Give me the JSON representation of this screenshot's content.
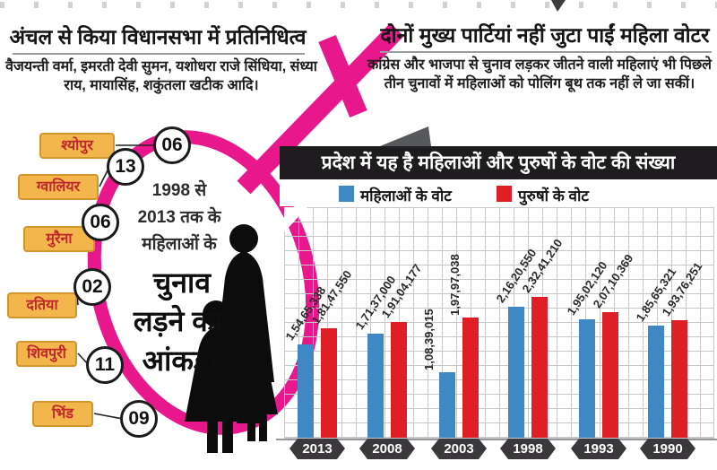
{
  "colors": {
    "pink": "#e8188c",
    "female_votes_blue": "#3f87c5",
    "male_votes_red": "#e01e25",
    "title_band_bg": "#1e1c1e",
    "district_badge_bg": "#f2b64d",
    "district_badge_border": "#d3962f",
    "district_badge_text": "#c0272d",
    "year_badge_bg": "#3a383b",
    "ribbon_shadow_gray": "#57585c"
  },
  "icons": {
    "female_symbol": "venus-symbol",
    "mother_and_children": "woman-with-children-silhouette"
  },
  "top_left": {
    "headline": "अंचल से किया विधानसभा में प्रतिनिधित्व",
    "body": "वैजयन्ती वर्मा, इमरती देवी सुमन, यशोधरा राजे सिंधिया, संध्या राय, मायासिंह, शकुंतला खटीक आदि।"
  },
  "top_right": {
    "headline": "दोनों मुख्य पार्टियां नहीं जुटा पाईं महिला वोटर",
    "body": "कांग्रेस और भाजपा से चुनाव लड़कर जीतने वाली महिलाएं भी पिछले तीन चुनावों में महिलाओं को पोलिंग बूथ तक नहीं ले जा सकीं।"
  },
  "diagram": {
    "period_lines": [
      "1998 से",
      "2013 तक के",
      "महिलाओं के"
    ],
    "emphasis_lines": [
      "चुनाव",
      "लड़ने का",
      "आंकड़ा"
    ],
    "districts": [
      {
        "name": "श्योपुर",
        "count": "06"
      },
      {
        "name": "ग्वालियर",
        "count": "13"
      },
      {
        "name": "मुरैना",
        "count": "06"
      },
      {
        "name": "दतिया",
        "count": "02"
      },
      {
        "name": "शिवपुरी",
        "count": "11"
      },
      {
        "name": "भिंड",
        "count": "09"
      }
    ]
  },
  "chart_data": {
    "type": "bar",
    "title": "प्रदेश में यह है महिलाओं और पुरुषों के वोट की संख्या",
    "categories": [
      "2013",
      "2008",
      "2003",
      "1998",
      "1993",
      "1990"
    ],
    "series": [
      {
        "name": "महिलाओं के वोट",
        "color_key": "female_votes_blue",
        "values": [
          15465338,
          17137000,
          10839015,
          21620550,
          19502120,
          18565321
        ],
        "labels": [
          "1,54,65,338",
          "1,71,37,000",
          "1,08,39,015",
          "2,16,20,550",
          "1,95,02,120",
          "1,85,65,321"
        ]
      },
      {
        "name": "पुरुषों के वोट",
        "color_key": "male_votes_red",
        "values": [
          18147550,
          19104177,
          19797038,
          23241210,
          20710369,
          19376251
        ],
        "labels": [
          "1,81,47,550",
          "1,91,04,177",
          "1,97,97,038",
          "2,32,41,210",
          "2,07,10,369",
          "1,93,76,251"
        ]
      }
    ],
    "label_orientation": [
      "diagonal",
      "diagonal",
      "vertical",
      "diagonal",
      "diagonal",
      "diagonal"
    ],
    "legend_position": "top",
    "grid": true,
    "ylim": [
      0,
      24000000
    ]
  }
}
